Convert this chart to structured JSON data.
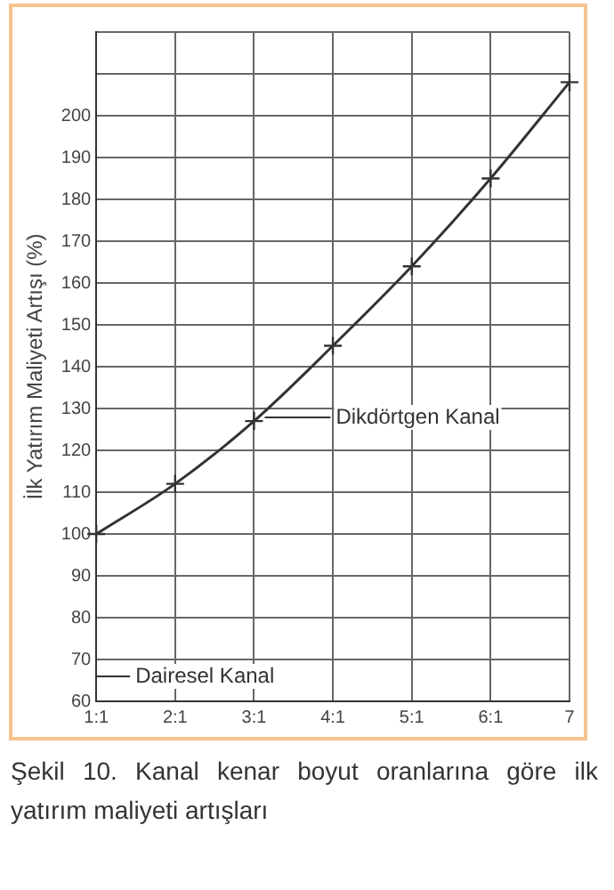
{
  "chart_data": {
    "type": "line",
    "xlabel": null,
    "ylabel": "İlk Yatırım Maliyeti Artışı (%)",
    "categories": [
      "1:1",
      "2:1",
      "3:1",
      "4:1",
      "5:1",
      "6:1",
      "7"
    ],
    "series": [
      {
        "color": "#333333",
        "values": [
          100,
          112,
          127,
          145,
          164,
          185,
          208
        ]
      }
    ],
    "ylim": [
      60,
      220
    ],
    "yticks": [
      60,
      70,
      80,
      90,
      100,
      110,
      120,
      130,
      140,
      150,
      160,
      170,
      180,
      190,
      200,
      {
        "value": 210,
        "label": null
      },
      {
        "value": 220,
        "label": null
      }
    ],
    "grid": true,
    "marker": "cross",
    "line_style": "solid",
    "legend": false,
    "annotations": [
      "Dikdörtgen Kanal",
      "Dairesel Kanal",
      "Şekil 10. Kanal kenar boyut oranlarına göre ilk yatırım maliyeti artışları"
    ]
  }
}
